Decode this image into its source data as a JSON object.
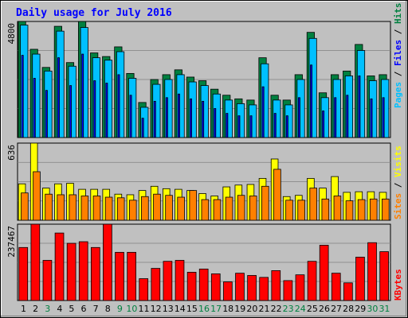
{
  "chart_data": [
    {
      "type": "bar",
      "title": "Daily usage for July 2016",
      "panel": "hits_files_pages",
      "categories": [
        "1",
        "2",
        "3",
        "4",
        "5",
        "6",
        "7",
        "8",
        "9",
        "10",
        "11",
        "12",
        "13",
        "14",
        "15",
        "16",
        "17",
        "18",
        "19",
        "20",
        "21",
        "22",
        "23",
        "24",
        "25",
        "26",
        "27",
        "28",
        "29",
        "30",
        "31"
      ],
      "ymax_label": "4800",
      "ylim": [
        0,
        4800
      ],
      "series": [
        {
          "name": "Hits",
          "color": "#008040",
          "values": [
            4800,
            3650,
            2900,
            4600,
            3100,
            4800,
            3500,
            3350,
            3750,
            2650,
            1450,
            2400,
            2600,
            2800,
            2500,
            2350,
            2000,
            1750,
            1600,
            1550,
            3300,
            1750,
            1550,
            2600,
            4350,
            1850,
            2600,
            2750,
            3850,
            2550,
            2600
          ]
        },
        {
          "name": "Files",
          "color": "#00c0ff",
          "values": [
            4650,
            3450,
            2750,
            4400,
            2950,
            4550,
            3300,
            3200,
            3550,
            2450,
            1250,
            2200,
            2400,
            2600,
            2300,
            2150,
            1800,
            1550,
            1400,
            1350,
            3050,
            1550,
            1350,
            2400,
            4100,
            1650,
            2400,
            2550,
            3600,
            2350,
            2400
          ]
        },
        {
          "name": "Pages",
          "color": "#0000ff",
          "values": [
            3400,
            2450,
            1950,
            3300,
            2150,
            3450,
            2350,
            2250,
            2600,
            1750,
            800,
            1500,
            1650,
            1800,
            1600,
            1500,
            1200,
            1000,
            900,
            900,
            2100,
            1000,
            900,
            1650,
            3000,
            1100,
            1650,
            1750,
            2550,
            1600,
            1650
          ]
        }
      ],
      "legend": "right-vertical"
    },
    {
      "type": "bar",
      "panel": "visits_sites",
      "categories": [
        "1",
        "2",
        "3",
        "4",
        "5",
        "6",
        "7",
        "8",
        "9",
        "10",
        "11",
        "12",
        "13",
        "14",
        "15",
        "16",
        "17",
        "18",
        "19",
        "20",
        "21",
        "22",
        "23",
        "24",
        "25",
        "26",
        "27",
        "28",
        "29",
        "30",
        "31"
      ],
      "ymax_label": "636",
      "ylim": [
        0,
        636
      ],
      "series": [
        {
          "name": "Visits",
          "color": "#ffff00",
          "values": [
            300,
            636,
            265,
            300,
            305,
            255,
            255,
            255,
            215,
            210,
            245,
            280,
            260,
            255,
            245,
            220,
            200,
            275,
            290,
            295,
            345,
            505,
            195,
            205,
            345,
            265,
            360,
            230,
            235,
            235,
            230
          ]
        },
        {
          "name": "Sites",
          "color": "#ff8000",
          "values": [
            225,
            400,
            215,
            210,
            210,
            200,
            200,
            190,
            185,
            165,
            195,
            215,
            205,
            190,
            245,
            170,
            170,
            190,
            205,
            200,
            280,
            420,
            165,
            165,
            265,
            175,
            200,
            160,
            170,
            175,
            175
          ]
        }
      ],
      "legend": "right-vertical"
    },
    {
      "type": "bar",
      "panel": "kbytes",
      "categories": [
        "1",
        "2",
        "3",
        "4",
        "5",
        "6",
        "7",
        "8",
        "9",
        "10",
        "11",
        "12",
        "13",
        "14",
        "15",
        "16",
        "17",
        "18",
        "19",
        "20",
        "21",
        "22",
        "23",
        "24",
        "25",
        "26",
        "27",
        "28",
        "29",
        "30",
        "31"
      ],
      "ymax_label": "237467",
      "ylim": [
        0,
        237467
      ],
      "series": [
        {
          "name": "KBytes",
          "color": "#ff0000",
          "values": [
            165000,
            237467,
            125000,
            210000,
            178000,
            183000,
            165000,
            237467,
            150000,
            150000,
            68000,
            100000,
            122000,
            125000,
            88000,
            98000,
            83000,
            58000,
            85000,
            78000,
            72000,
            93000,
            62000,
            80000,
            122000,
            172000,
            85000,
            55000,
            135000,
            180000,
            152000
          ]
        }
      ],
      "legend": "right-vertical"
    }
  ],
  "day_label_colors": [
    "#000000",
    "#000000",
    "#008040",
    "#000000",
    "#000000",
    "#000000",
    "#000000",
    "#000000",
    "#008040",
    "#008040",
    "#000000",
    "#000000",
    "#000000",
    "#000000",
    "#000000",
    "#008040",
    "#008040",
    "#000000",
    "#000000",
    "#000000",
    "#000000",
    "#000000",
    "#008040",
    "#008040",
    "#000000",
    "#000000",
    "#000000",
    "#000000",
    "#000000",
    "#008040",
    "#008040"
  ],
  "colors": {
    "frame": "#c0c0c0",
    "plot_bg": "#c0c0c0",
    "title": "#0000ff",
    "separator": "#606060"
  },
  "legend_text": {
    "hits": "Hits",
    "files": "Files",
    "pages": "Pages",
    "visits": "Visits",
    "sites": "Sites",
    "kbytes": "KBytes",
    "slash": " / "
  }
}
